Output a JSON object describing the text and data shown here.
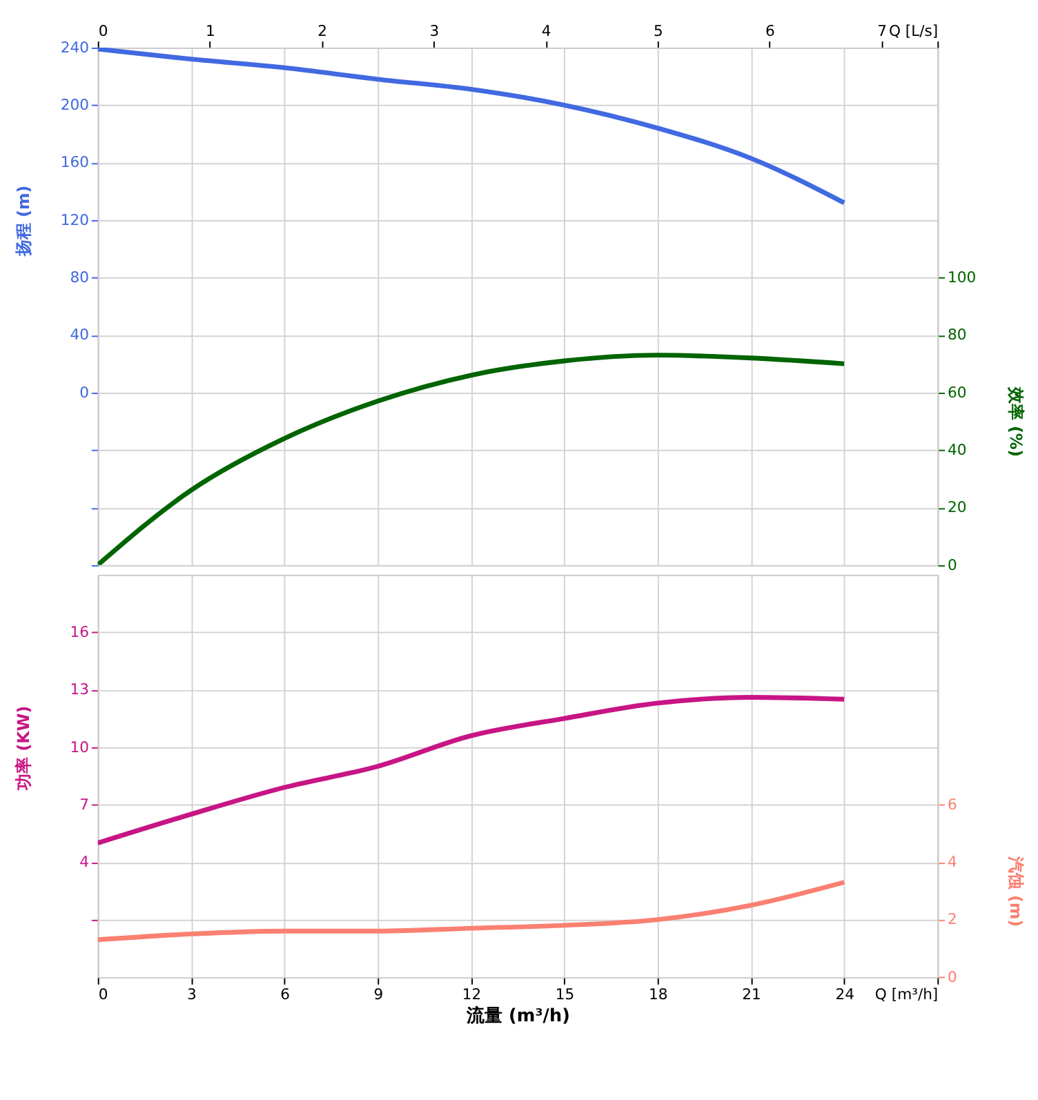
{
  "chart_data": [
    {
      "type": "line",
      "ylabel": "扬程 (m)",
      "y2label": "效率 (%)",
      "x": [
        0,
        3,
        6,
        9,
        12,
        15,
        18,
        21,
        24
      ],
      "xlim": [
        0,
        27
      ],
      "xticks": [
        0,
        3,
        6,
        9,
        12,
        15,
        18,
        21,
        24,
        27
      ],
      "x2lim": [
        0,
        7.5
      ],
      "x2ticks": [
        0,
        1,
        2,
        3,
        4,
        5,
        6,
        7,
        {
          "value": 7.5,
          "label": "Q [L/s]"
        }
      ],
      "ylim": [
        -120,
        240
      ],
      "yticks": [
        {
          "value": -120,
          "label": null
        },
        {
          "value": -80,
          "label": null
        },
        {
          "value": -40,
          "label": null
        },
        0,
        40,
        80,
        120,
        160,
        200,
        240
      ],
      "y2lim": [
        0,
        180
      ],
      "y2ticks": [
        0,
        20,
        40,
        60,
        80,
        100
      ],
      "tick_labels": "y",
      "grid": true,
      "series": [
        {
          "color": "#4169e1",
          "values": [
            239,
            232,
            226,
            218,
            211,
            200,
            184,
            163,
            132
          ]
        },
        {
          "color": "#006400",
          "axis": "y2",
          "values": [
            0,
            26,
            44,
            57,
            66,
            71,
            73,
            72,
            70
          ]
        }
      ]
    },
    {
      "type": "line",
      "xlabel": "流量 (m³/h)",
      "ylabel": "功率 (KW)",
      "y2label": "汽蚀 (m)",
      "x": [
        0,
        3,
        6,
        9,
        12,
        15,
        18,
        21,
        24
      ],
      "xlim": [
        0,
        27
      ],
      "xticks": [
        0,
        3,
        6,
        9,
        12,
        15,
        18,
        21,
        24,
        {
          "value": 27,
          "label": "Q [m³/h]"
        }
      ],
      "ylim": [
        -2,
        19
      ],
      "yticks": [
        {
          "value": 1,
          "label": null
        },
        4,
        7,
        10,
        13,
        16
      ],
      "y2lim": [
        0,
        14
      ],
      "y2ticks": [
        0,
        2,
        4,
        6
      ],
      "grid": true,
      "series": [
        {
          "color": "#c71585",
          "values": [
            5.0,
            6.5,
            7.9,
            9.0,
            10.6,
            11.5,
            12.3,
            12.6,
            12.5
          ]
        },
        {
          "color": "#fa8072",
          "axis": "y2",
          "values": [
            1.3,
            1.5,
            1.6,
            1.6,
            1.7,
            1.8,
            2.0,
            2.5,
            3.3
          ]
        }
      ]
    }
  ]
}
